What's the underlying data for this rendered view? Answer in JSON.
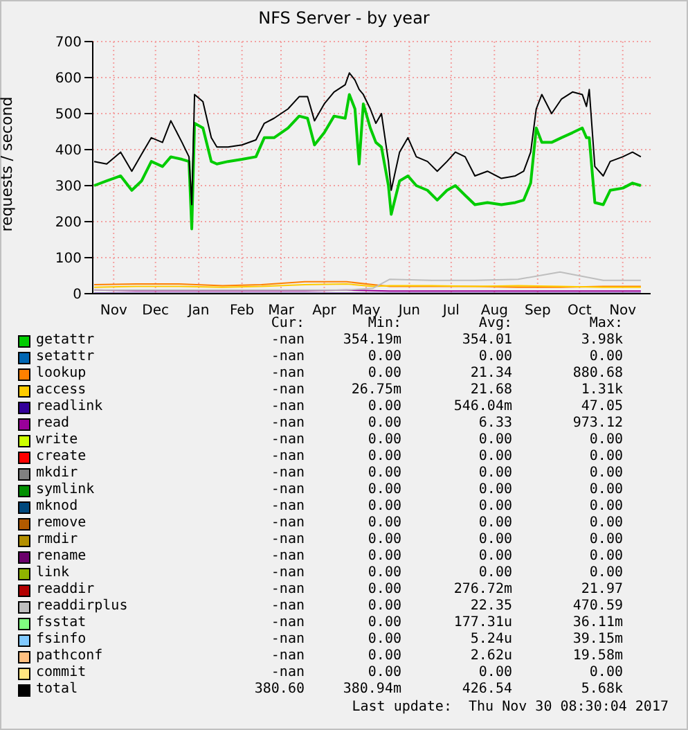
{
  "chart_data": {
    "type": "line",
    "title": "NFS Server - by year",
    "ylabel": "requests / second",
    "x": [
      "2016-11-01",
      "2016-11-10",
      "2016-11-20",
      "2016-11-28",
      "2016-12-05",
      "2016-12-12",
      "2016-12-20",
      "2016-12-26",
      "2017-01-03",
      "2017-01-08",
      "2017-01-10",
      "2017-01-12",
      "2017-01-18",
      "2017-01-24",
      "2017-01-28",
      "2017-02-05",
      "2017-02-15",
      "2017-02-25",
      "2017-03-03",
      "2017-03-10",
      "2017-03-20",
      "2017-03-28",
      "2017-04-03",
      "2017-04-08",
      "2017-04-15",
      "2017-04-22",
      "2017-04-30",
      "2017-05-03",
      "2017-05-07",
      "2017-05-10",
      "2017-05-13",
      "2017-05-18",
      "2017-05-22",
      "2017-05-26",
      "2017-05-31",
      "2017-06-02",
      "2017-06-08",
      "2017-06-14",
      "2017-06-20",
      "2017-06-28",
      "2017-07-05",
      "2017-07-12",
      "2017-07-18",
      "2017-07-25",
      "2017-08-01",
      "2017-08-10",
      "2017-08-20",
      "2017-08-30",
      "2017-09-05",
      "2017-09-10",
      "2017-09-14",
      "2017-09-18",
      "2017-09-25",
      "2017-10-02",
      "2017-10-10",
      "2017-10-17",
      "2017-10-20",
      "2017-10-22",
      "2017-10-26",
      "2017-11-01",
      "2017-11-06",
      "2017-11-15",
      "2017-11-22",
      "2017-11-28"
    ],
    "series": [
      {
        "name": "getattr",
        "color": "#00cc00",
        "values": [
          300,
          313,
          327,
          287,
          313,
          367,
          353,
          380,
          373,
          367,
          180,
          473,
          460,
          367,
          360,
          367,
          373,
          380,
          433,
          433,
          460,
          493,
          487,
          413,
          447,
          493,
          487,
          553,
          513,
          360,
          527,
          460,
          420,
          407,
          300,
          220,
          313,
          327,
          300,
          287,
          260,
          287,
          300,
          273,
          247,
          253,
          247,
          253,
          260,
          307,
          460,
          420,
          420,
          433,
          447,
          460,
          433,
          433,
          253,
          247,
          287,
          293,
          307,
          300
        ]
      },
      {
        "name": "setattr",
        "color": "#0066b3",
        "values": [
          null,
          null,
          null,
          null,
          null,
          null,
          null,
          null,
          null,
          null,
          null,
          null,
          null,
          null,
          null,
          null,
          null,
          null,
          null,
          null,
          null,
          null,
          null,
          null,
          null,
          null,
          null,
          null,
          null,
          null,
          null,
          null,
          null,
          null,
          null,
          null,
          null,
          null,
          null,
          null,
          null,
          null,
          null,
          null,
          null,
          null,
          null,
          null,
          null,
          null,
          null,
          null,
          null,
          null,
          null,
          null,
          null,
          null,
          null,
          null,
          null,
          null,
          null,
          null
        ]
      },
      {
        "name": "lookup",
        "color": "#ff8000",
        "x": [
          "2016-11-01",
          "2016-12-01",
          "2017-01-01",
          "2017-02-01",
          "2017-03-01",
          "2017-04-01",
          "2017-05-01",
          "2017-05-20",
          "2017-06-01",
          "2017-07-01",
          "2017-08-01",
          "2017-09-01",
          "2017-10-01",
          "2017-11-01",
          "2017-11-28"
        ],
        "values": [
          25,
          27,
          27,
          22,
          25,
          33,
          33,
          25,
          20,
          20,
          20,
          18,
          18,
          20,
          20
        ]
      },
      {
        "name": "access",
        "color": "#ffcc00",
        "x": [
          "2016-11-01",
          "2016-12-01",
          "2017-01-01",
          "2017-02-01",
          "2017-03-01",
          "2017-04-01",
          "2017-05-01",
          "2017-05-20",
          "2017-06-01",
          "2017-07-01",
          "2017-08-01",
          "2017-09-01",
          "2017-10-01",
          "2017-11-01",
          "2017-11-28"
        ],
        "values": [
          18,
          20,
          20,
          18,
          20,
          25,
          27,
          20,
          22,
          22,
          20,
          22,
          20,
          18,
          18
        ]
      },
      {
        "name": "readlink",
        "color": "#330099",
        "x": [
          "2016-11-01",
          "2017-11-28"
        ],
        "values": [
          1,
          1
        ]
      },
      {
        "name": "read",
        "color": "#990099",
        "x": [
          "2016-11-01",
          "2016-12-01",
          "2017-01-01",
          "2017-02-01",
          "2017-03-01",
          "2017-04-01",
          "2017-05-01",
          "2017-05-20",
          "2017-06-01",
          "2017-07-01",
          "2017-08-01",
          "2017-09-01",
          "2017-10-01",
          "2017-11-01",
          "2017-11-28"
        ],
        "values": [
          10,
          8,
          8,
          8,
          8,
          8,
          10,
          8,
          7,
          7,
          7,
          7,
          7,
          7,
          7
        ]
      },
      {
        "name": "write",
        "color": "#ccff00",
        "values": [
          null,
          null,
          null,
          null,
          null,
          null,
          null,
          null,
          null,
          null,
          null,
          null,
          null,
          null,
          null,
          null,
          null,
          null,
          null,
          null,
          null,
          null,
          null,
          null,
          null,
          null,
          null,
          null,
          null,
          null,
          null,
          null,
          null,
          null,
          null,
          null,
          null,
          null,
          null,
          null,
          null,
          null,
          null,
          null,
          null,
          null,
          null,
          null,
          null,
          null,
          null,
          null,
          null,
          null,
          null,
          null,
          null,
          null,
          null,
          null,
          null,
          null,
          null,
          null
        ]
      },
      {
        "name": "create",
        "color": "#ff0000",
        "values": [
          null,
          null,
          null,
          null,
          null,
          null,
          null,
          null,
          null,
          null,
          null,
          null,
          null,
          null,
          null,
          null,
          null,
          null,
          null,
          null,
          null,
          null,
          null,
          null,
          null,
          null,
          null,
          null,
          null,
          null,
          null,
          null,
          null,
          null,
          null,
          null,
          null,
          null,
          null,
          null,
          null,
          null,
          null,
          null,
          null,
          null,
          null,
          null,
          null,
          null,
          null,
          null,
          null,
          null,
          null,
          null,
          null,
          null,
          null,
          null,
          null,
          null,
          null,
          null
        ]
      },
      {
        "name": "mkdir",
        "color": "#808080",
        "values": [
          null,
          null,
          null,
          null,
          null,
          null,
          null,
          null,
          null,
          null,
          null,
          null,
          null,
          null,
          null,
          null,
          null,
          null,
          null,
          null,
          null,
          null,
          null,
          null,
          null,
          null,
          null,
          null,
          null,
          null,
          null,
          null,
          null,
          null,
          null,
          null,
          null,
          null,
          null,
          null,
          null,
          null,
          null,
          null,
          null,
          null,
          null,
          null,
          null,
          null,
          null,
          null,
          null,
          null,
          null,
          null,
          null,
          null,
          null,
          null,
          null,
          null,
          null,
          null
        ]
      },
      {
        "name": "symlink",
        "color": "#008f00",
        "values": [
          null,
          null,
          null,
          null,
          null,
          null,
          null,
          null,
          null,
          null,
          null,
          null,
          null,
          null,
          null,
          null,
          null,
          null,
          null,
          null,
          null,
          null,
          null,
          null,
          null,
          null,
          null,
          null,
          null,
          null,
          null,
          null,
          null,
          null,
          null,
          null,
          null,
          null,
          null,
          null,
          null,
          null,
          null,
          null,
          null,
          null,
          null,
          null,
          null,
          null,
          null,
          null,
          null,
          null,
          null,
          null,
          null,
          null,
          null,
          null,
          null,
          null,
          null,
          null
        ]
      },
      {
        "name": "mknod",
        "color": "#00487d",
        "values": [
          null,
          null,
          null,
          null,
          null,
          null,
          null,
          null,
          null,
          null,
          null,
          null,
          null,
          null,
          null,
          null,
          null,
          null,
          null,
          null,
          null,
          null,
          null,
          null,
          null,
          null,
          null,
          null,
          null,
          null,
          null,
          null,
          null,
          null,
          null,
          null,
          null,
          null,
          null,
          null,
          null,
          null,
          null,
          null,
          null,
          null,
          null,
          null,
          null,
          null,
          null,
          null,
          null,
          null,
          null,
          null,
          null,
          null,
          null,
          null,
          null,
          null,
          null,
          null
        ]
      },
      {
        "name": "remove",
        "color": "#b35a00",
        "values": [
          null,
          null,
          null,
          null,
          null,
          null,
          null,
          null,
          null,
          null,
          null,
          null,
          null,
          null,
          null,
          null,
          null,
          null,
          null,
          null,
          null,
          null,
          null,
          null,
          null,
          null,
          null,
          null,
          null,
          null,
          null,
          null,
          null,
          null,
          null,
          null,
          null,
          null,
          null,
          null,
          null,
          null,
          null,
          null,
          null,
          null,
          null,
          null,
          null,
          null,
          null,
          null,
          null,
          null,
          null,
          null,
          null,
          null,
          null,
          null,
          null,
          null,
          null,
          null
        ]
      },
      {
        "name": "rmdir",
        "color": "#b38f00",
        "values": [
          null,
          null,
          null,
          null,
          null,
          null,
          null,
          null,
          null,
          null,
          null,
          null,
          null,
          null,
          null,
          null,
          null,
          null,
          null,
          null,
          null,
          null,
          null,
          null,
          null,
          null,
          null,
          null,
          null,
          null,
          null,
          null,
          null,
          null,
          null,
          null,
          null,
          null,
          null,
          null,
          null,
          null,
          null,
          null,
          null,
          null,
          null,
          null,
          null,
          null,
          null,
          null,
          null,
          null,
          null,
          null,
          null,
          null,
          null,
          null,
          null,
          null,
          null,
          null
        ]
      },
      {
        "name": "rename",
        "color": "#6b006b",
        "values": [
          null,
          null,
          null,
          null,
          null,
          null,
          null,
          null,
          null,
          null,
          null,
          null,
          null,
          null,
          null,
          null,
          null,
          null,
          null,
          null,
          null,
          null,
          null,
          null,
          null,
          null,
          null,
          null,
          null,
          null,
          null,
          null,
          null,
          null,
          null,
          null,
          null,
          null,
          null,
          null,
          null,
          null,
          null,
          null,
          null,
          null,
          null,
          null,
          null,
          null,
          null,
          null,
          null,
          null,
          null,
          null,
          null,
          null,
          null,
          null,
          null,
          null,
          null,
          null
        ]
      },
      {
        "name": "link",
        "color": "#8fb300",
        "values": [
          null,
          null,
          null,
          null,
          null,
          null,
          null,
          null,
          null,
          null,
          null,
          null,
          null,
          null,
          null,
          null,
          null,
          null,
          null,
          null,
          null,
          null,
          null,
          null,
          null,
          null,
          null,
          null,
          null,
          null,
          null,
          null,
          null,
          null,
          null,
          null,
          null,
          null,
          null,
          null,
          null,
          null,
          null,
          null,
          null,
          null,
          null,
          null,
          null,
          null,
          null,
          null,
          null,
          null,
          null,
          null,
          null,
          null,
          null,
          null,
          null,
          null,
          null,
          null
        ]
      },
      {
        "name": "readdir",
        "color": "#b30000",
        "values": [
          null,
          null,
          null,
          null,
          null,
          null,
          null,
          null,
          null,
          null,
          null,
          null,
          null,
          null,
          null,
          null,
          null,
          null,
          null,
          null,
          null,
          null,
          null,
          null,
          null,
          null,
          null,
          null,
          null,
          null,
          null,
          null,
          null,
          null,
          null,
          null,
          null,
          null,
          null,
          null,
          null,
          null,
          null,
          null,
          null,
          null,
          null,
          null,
          null,
          null,
          null,
          null,
          null,
          null,
          null,
          null,
          null,
          null,
          null,
          null,
          null,
          null,
          null,
          null
        ]
      },
      {
        "name": "readdirplus",
        "color": "#bebebe",
        "x": [
          "2016-11-01",
          "2016-12-01",
          "2017-01-01",
          "2017-02-01",
          "2017-03-01",
          "2017-04-01",
          "2017-05-01",
          "2017-05-20",
          "2017-06-01",
          "2017-07-01",
          "2017-08-01",
          "2017-09-01",
          "2017-10-01",
          "2017-11-01",
          "2017-11-28"
        ],
        "values": [
          10,
          10,
          10,
          10,
          10,
          10,
          10,
          15,
          40,
          37,
          37,
          40,
          60,
          37,
          37
        ]
      },
      {
        "name": "fsstat",
        "color": "#80ff80",
        "values": [
          null,
          null,
          null,
          null,
          null,
          null,
          null,
          null,
          null,
          null,
          null,
          null,
          null,
          null,
          null,
          null,
          null,
          null,
          null,
          null,
          null,
          null,
          null,
          null,
          null,
          null,
          null,
          null,
          null,
          null,
          null,
          null,
          null,
          null,
          null,
          null,
          null,
          null,
          null,
          null,
          null,
          null,
          null,
          null,
          null,
          null,
          null,
          null,
          null,
          null,
          null,
          null,
          null,
          null,
          null,
          null,
          null,
          null,
          null,
          null,
          null,
          null,
          null,
          null
        ]
      },
      {
        "name": "fsinfo",
        "color": "#80c9ff",
        "values": [
          null,
          null,
          null,
          null,
          null,
          null,
          null,
          null,
          null,
          null,
          null,
          null,
          null,
          null,
          null,
          null,
          null,
          null,
          null,
          null,
          null,
          null,
          null,
          null,
          null,
          null,
          null,
          null,
          null,
          null,
          null,
          null,
          null,
          null,
          null,
          null,
          null,
          null,
          null,
          null,
          null,
          null,
          null,
          null,
          null,
          null,
          null,
          null,
          null,
          null,
          null,
          null,
          null,
          null,
          null,
          null,
          null,
          null,
          null,
          null,
          null,
          null,
          null,
          null
        ]
      },
      {
        "name": "pathconf",
        "color": "#ffc080",
        "values": [
          null,
          null,
          null,
          null,
          null,
          null,
          null,
          null,
          null,
          null,
          null,
          null,
          null,
          null,
          null,
          null,
          null,
          null,
          null,
          null,
          null,
          null,
          null,
          null,
          null,
          null,
          null,
          null,
          null,
          null,
          null,
          null,
          null,
          null,
          null,
          null,
          null,
          null,
          null,
          null,
          null,
          null,
          null,
          null,
          null,
          null,
          null,
          null,
          null,
          null,
          null,
          null,
          null,
          null,
          null,
          null,
          null,
          null,
          null,
          null,
          null,
          null,
          null,
          null
        ]
      },
      {
        "name": "commit",
        "color": "#ffe680",
        "values": [
          null,
          null,
          null,
          null,
          null,
          null,
          null,
          null,
          null,
          null,
          null,
          null,
          null,
          null,
          null,
          null,
          null,
          null,
          null,
          null,
          null,
          null,
          null,
          null,
          null,
          null,
          null,
          null,
          null,
          null,
          null,
          null,
          null,
          null,
          null,
          null,
          null,
          null,
          null,
          null,
          null,
          null,
          null,
          null,
          null,
          null,
          null,
          null,
          null,
          null,
          null,
          null,
          null,
          null,
          null,
          null,
          null,
          null,
          null,
          null,
          null,
          null,
          null,
          null
        ]
      },
      {
        "name": "total",
        "color": "#000000",
        "values": [
          367,
          360,
          393,
          340,
          387,
          433,
          420,
          480,
          420,
          380,
          247,
          553,
          533,
          433,
          407,
          407,
          413,
          427,
          473,
          487,
          513,
          547,
          547,
          480,
          527,
          560,
          580,
          613,
          593,
          567,
          553,
          513,
          473,
          500,
          367,
          287,
          393,
          433,
          380,
          367,
          340,
          367,
          393,
          380,
          327,
          340,
          320,
          327,
          340,
          393,
          513,
          553,
          500,
          540,
          560,
          553,
          520,
          567,
          353,
          327,
          367,
          380,
          393,
          380
        ]
      }
    ],
    "xlim": [
      "2016-10-31",
      "2017-12-05"
    ],
    "xticks": [
      {
        "value": "2016-11-15",
        "label": "Nov"
      },
      {
        "value": "2016-12-15",
        "label": "Dec"
      },
      {
        "value": "2017-01-15",
        "label": "Jan"
      },
      {
        "value": "2017-02-15",
        "label": "Feb"
      },
      {
        "value": "2017-03-15",
        "label": "Mar"
      },
      {
        "value": "2017-04-15",
        "label": "Apr"
      },
      {
        "value": "2017-05-15",
        "label": "May"
      },
      {
        "value": "2017-06-15",
        "label": "Jun"
      },
      {
        "value": "2017-07-15",
        "label": "Jul"
      },
      {
        "value": "2017-08-15",
        "label": "Aug"
      },
      {
        "value": "2017-09-15",
        "label": "Sep"
      },
      {
        "value": "2017-10-15",
        "label": "Oct"
      },
      {
        "value": "2017-11-15",
        "label": "Nov"
      }
    ],
    "ylim": [
      0,
      700
    ],
    "yticks": [
      0,
      100,
      200,
      300,
      400,
      500,
      600,
      700
    ],
    "grid": true,
    "legend": "bottom",
    "marker": "none",
    "line_style": "solid",
    "annotations": [
      "Cur:",
      "Min:",
      "Avg:",
      "Max:",
      "-nan",
      "354.19m",
      "354.01",
      "3.98k",
      "-nan",
      "0.00",
      "0.00",
      "0.00",
      "-nan",
      "0.00",
      "21.34",
      "880.68",
      "-nan",
      "26.75m",
      "21.68",
      "1.31k",
      "-nan",
      "0.00",
      "546.04m",
      "47.05",
      "-nan",
      "0.00",
      "6.33",
      "973.12",
      "-nan",
      "0.00",
      "0.00",
      "0.00",
      "-nan",
      "0.00",
      "0.00",
      "0.00",
      "-nan",
      "0.00",
      "0.00",
      "0.00",
      "-nan",
      "0.00",
      "0.00",
      "0.00",
      "-nan",
      "0.00",
      "0.00",
      "0.00",
      "-nan",
      "0.00",
      "0.00",
      "0.00",
      "-nan",
      "0.00",
      "0.00",
      "0.00",
      "-nan",
      "0.00",
      "0.00",
      "0.00",
      "-nan",
      "0.00",
      "0.00",
      "0.00",
      "-nan",
      "0.00",
      "276.72m",
      "21.97",
      "-nan",
      "0.00",
      "22.35",
      "470.59",
      "-nan",
      "0.00",
      "177.31u",
      "36.11m",
      "-nan",
      "0.00",
      "5.24u",
      "39.15m",
      "-nan",
      "0.00",
      "2.62u",
      "19.58m",
      "-nan",
      "0.00",
      "0.00",
      "0.00",
      "380.60",
      "380.94m",
      "426.54",
      "5.68k",
      "Last update:  Thu Nov 30 08:30:04 2017"
    ]
  }
}
